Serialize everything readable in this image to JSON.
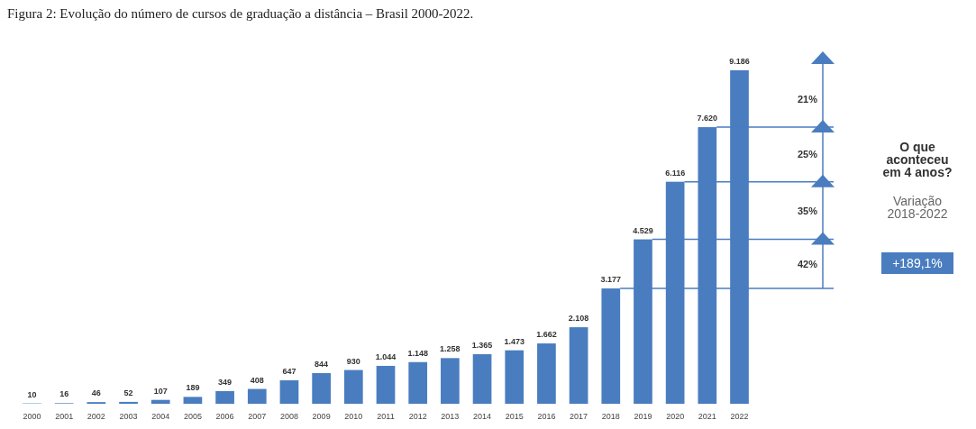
{
  "chart_data": {
    "type": "bar",
    "title": "Figura 2: Evolução do número de cursos de graduação a distância – Brasil 2000-2022.",
    "categories": [
      "2000",
      "2001",
      "2002",
      "2003",
      "2004",
      "2005",
      "2006",
      "2007",
      "2008",
      "2009",
      "2010",
      "2011",
      "2012",
      "2013",
      "2014",
      "2015",
      "2016",
      "2017",
      "2018",
      "2019",
      "2020",
      "2021",
      "2022"
    ],
    "values": [
      10,
      16,
      46,
      52,
      107,
      189,
      349,
      408,
      647,
      844,
      930,
      1044,
      1148,
      1258,
      1365,
      1473,
      1662,
      2108,
      3177,
      4529,
      6116,
      7620,
      9186
    ],
    "value_labels": [
      "10",
      "16",
      "46",
      "52",
      "107",
      "189",
      "349",
      "408",
      "647",
      "844",
      "930",
      "1.044",
      "1.148",
      "1.258",
      "1.365",
      "1.473",
      "1.662",
      "2.108",
      "3.177",
      "4.529",
      "6.116",
      "7.620",
      "9.186"
    ],
    "color": "#4a7dbf",
    "annotations": [
      "42%",
      "35%",
      "25%",
      "21%",
      "O que aconteceu em 4 anos?",
      "Variação 2018-2022",
      "+189,1%"
    ]
  }
}
